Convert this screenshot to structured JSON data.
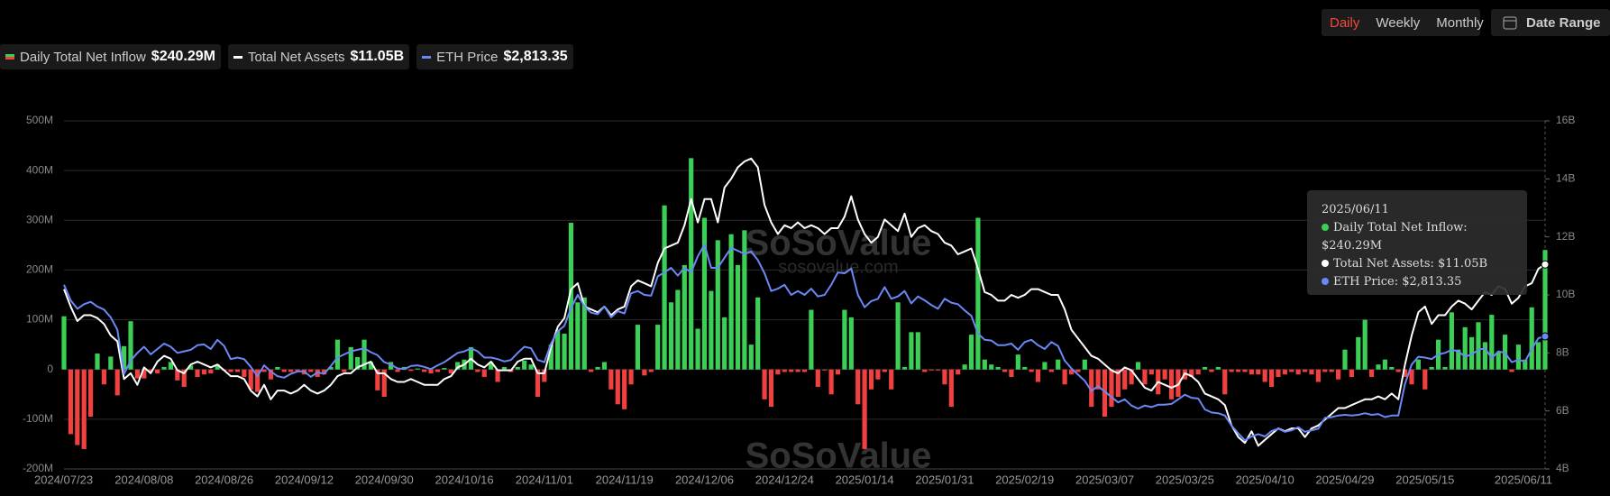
{
  "controls": {
    "periods": [
      "Daily",
      "Weekly",
      "Monthly"
    ],
    "active": "Daily",
    "date_range": "Date Range"
  },
  "watermark": {
    "brand": "SoSoValue",
    "site": "sosovalue.com"
  },
  "chart_data": {
    "type": "bar_line",
    "categories": [
      "2024/07/23",
      null,
      null,
      null,
      null,
      null,
      null,
      null,
      null,
      null,
      null,
      null,
      "2024/08/08",
      null,
      null,
      null,
      null,
      null,
      null,
      null,
      null,
      null,
      null,
      null,
      "2024/08/26",
      null,
      null,
      null,
      null,
      null,
      null,
      null,
      null,
      null,
      null,
      null,
      "2024/09/12",
      null,
      null,
      null,
      null,
      null,
      null,
      null,
      null,
      null,
      null,
      null,
      "2024/09/30",
      null,
      null,
      null,
      null,
      null,
      null,
      null,
      null,
      null,
      null,
      null,
      "2024/10/16",
      null,
      null,
      null,
      null,
      null,
      null,
      null,
      null,
      null,
      null,
      null,
      "2024/11/01",
      null,
      null,
      null,
      null,
      null,
      null,
      null,
      null,
      null,
      null,
      null,
      "2024/11/19",
      null,
      null,
      null,
      null,
      null,
      null,
      null,
      null,
      null,
      null,
      null,
      "2024/12/06",
      null,
      null,
      null,
      null,
      null,
      null,
      null,
      null,
      null,
      null,
      null,
      "2024/12/24",
      null,
      null,
      null,
      null,
      null,
      null,
      null,
      null,
      null,
      null,
      null,
      "2025/01/14",
      null,
      null,
      null,
      null,
      null,
      null,
      null,
      null,
      null,
      null,
      null,
      "2025/01/31",
      null,
      null,
      null,
      null,
      null,
      null,
      null,
      null,
      null,
      null,
      null,
      "2025/02/19",
      null,
      null,
      null,
      null,
      null,
      null,
      null,
      null,
      null,
      null,
      null,
      "2025/03/07",
      null,
      null,
      null,
      null,
      null,
      null,
      null,
      null,
      null,
      null,
      null,
      "2025/03/25",
      null,
      null,
      null,
      null,
      null,
      null,
      null,
      null,
      null,
      null,
      null,
      "2025/04/10",
      null,
      null,
      null,
      null,
      null,
      null,
      null,
      null,
      null,
      null,
      null,
      "2025/04/29",
      null,
      null,
      null,
      null,
      null,
      null,
      null,
      null,
      null,
      null,
      null,
      "2025/05/15",
      null,
      null,
      null,
      null,
      null,
      null,
      null,
      null,
      null,
      null,
      null,
      null,
      null,
      null,
      null,
      null,
      null,
      "2025/06/11"
    ],
    "series": [
      {
        "name": "Daily Total Net Inflow",
        "legend_value": "$240.29M",
        "kind": "bar",
        "color": "#3ccf55",
        "negative_color": "#f04040",
        "values": [
          107,
          -130,
          -152,
          -160,
          -95,
          32,
          -30,
          26,
          -52,
          47,
          97,
          -18,
          -18,
          -5,
          -8,
          5,
          15,
          -22,
          -35,
          8,
          -15,
          -10,
          -8,
          10,
          -2,
          -5,
          -5,
          -15,
          -40,
          -45,
          -5,
          -20,
          5,
          -5,
          -5,
          -3,
          -10,
          -5,
          -15,
          -10,
          5,
          60,
          -5,
          45,
          25,
          60,
          15,
          -42,
          -55,
          15,
          -5,
          5,
          -3,
          2,
          -5,
          -8,
          -5,
          3,
          -8,
          15,
          20,
          45,
          -5,
          -15,
          15,
          -25,
          5,
          -5,
          5,
          18,
          10,
          -55,
          -25,
          50,
          80,
          72,
          295,
          135,
          145,
          -5,
          5,
          15,
          -40,
          -70,
          -80,
          -30,
          90,
          -12,
          -5,
          90,
          330,
          135,
          160,
          210,
          425,
          82,
          305,
          158,
          260,
          105,
          272,
          210,
          280,
          50,
          145,
          -60,
          -75,
          -10,
          -5,
          -5,
          -5,
          -5,
          120,
          -35,
          -2,
          -50,
          -10,
          120,
          105,
          -70,
          -160,
          -40,
          -20,
          -5,
          -40,
          135,
          5,
          75,
          75,
          -5,
          -2,
          -2,
          -30,
          -75,
          -10,
          10,
          70,
          305,
          20,
          10,
          5,
          -5,
          -15,
          30,
          5,
          -5,
          -25,
          15,
          -5,
          20,
          -30,
          -10,
          -5,
          20,
          -75,
          -40,
          -95,
          -75,
          -55,
          -40,
          -30,
          15,
          -30,
          -10,
          -50,
          -20,
          -60,
          -55,
          -20,
          -15,
          -10,
          5,
          -5,
          5,
          -50,
          -5,
          -5,
          -5,
          -10,
          -10,
          -25,
          -35,
          -15,
          -10,
          -5,
          -10,
          -5,
          -10,
          -25,
          -5,
          -5,
          -20,
          40,
          -15,
          65,
          100,
          -15,
          10,
          20,
          5,
          -5,
          -15,
          -30,
          20,
          -40,
          5,
          60,
          5,
          115,
          40,
          85,
          65,
          95,
          55,
          110,
          35,
          70,
          -5,
          50,
          20,
          125,
          55,
          240.29
        ]
      },
      {
        "name": "Total Net Assets",
        "legend_value": "$11.05B",
        "kind": "line",
        "axis": "y2",
        "color": "#ffffff",
        "values": [
          10.2,
          9.6,
          9.1,
          9.3,
          9.3,
          9.2,
          9.0,
          8.6,
          8.4,
          7.1,
          7.3,
          6.9,
          7.5,
          7.3,
          7.7,
          7.9,
          7.8,
          7.4,
          7.3,
          7.6,
          7.7,
          7.6,
          7.5,
          7.6,
          7.4,
          7.2,
          7.2,
          7.1,
          6.7,
          6.5,
          6.9,
          6.4,
          6.7,
          6.7,
          6.6,
          6.7,
          6.9,
          6.7,
          6.6,
          6.7,
          6.9,
          7.2,
          7.3,
          7.3,
          7.5,
          7.6,
          7.7,
          7.3,
          7.3,
          7.1,
          7.0,
          7.0,
          7.1,
          7.0,
          6.9,
          6.9,
          6.9,
          7.1,
          7.2,
          7.5,
          7.6,
          7.8,
          7.6,
          7.5,
          7.7,
          7.4,
          7.4,
          7.4,
          7.7,
          7.8,
          7.8,
          7.3,
          7.3,
          8.2,
          8.9,
          9.2,
          10.2,
          10.4,
          9.6,
          9.5,
          9.4,
          9.6,
          9.3,
          9.5,
          9.6,
          10.3,
          10.5,
          10.4,
          10.3,
          11.1,
          11.6,
          11.7,
          11.8,
          12.4,
          13.3,
          12.5,
          13.3,
          13.3,
          12.5,
          13.7,
          14.0,
          14.4,
          14.6,
          14.7,
          14.4,
          13.1,
          12.5,
          12.1,
          12.4,
          12.3,
          12.5,
          12.3,
          12.4,
          12.3,
          12.1,
          12.3,
          12.3,
          12.7,
          13.4,
          12.6,
          12.1,
          11.8,
          12.0,
          12.6,
          12.4,
          12.2,
          12.8,
          12.0,
          12.3,
          12.4,
          12.2,
          12.1,
          11.8,
          11.7,
          11.4,
          11.5,
          11.6,
          10.9,
          10.1,
          10.0,
          9.8,
          9.8,
          10.0,
          9.9,
          10.0,
          10.2,
          10.2,
          10.1,
          10.0,
          10.0,
          9.5,
          8.8,
          8.5,
          8.2,
          7.9,
          7.8,
          7.6,
          7.4,
          7.3,
          7.5,
          7.4,
          7.1,
          6.8,
          6.7,
          7.0,
          6.9,
          6.8,
          6.9,
          7.3,
          7.2,
          7.0,
          6.6,
          6.5,
          6.4,
          6.2,
          5.5,
          5.1,
          4.9,
          5.3,
          4.8,
          5.0,
          5.2,
          5.4,
          5.3,
          5.4,
          5.4,
          5.1,
          5.4,
          5.5,
          5.7,
          5.9,
          6.1,
          6.1,
          6.2,
          6.3,
          6.4,
          6.4,
          6.5,
          6.4,
          6.6,
          6.4,
          7.6,
          8.6,
          9.4,
          9.6,
          9.0,
          9.3,
          9.3,
          9.6,
          9.8,
          9.7,
          9.5,
          9.8,
          10.1,
          10.0,
          10.3,
          10.2,
          9.7,
          9.9,
          10.3,
          10.4,
          10.9,
          11.05
        ]
      },
      {
        "name": "ETH Price",
        "legend_value": "$2,813.35",
        "kind": "line",
        "axis": "y3",
        "color": "#6b88f5",
        "values": [
          3480,
          3280,
          3170,
          3230,
          3260,
          3200,
          3160,
          3060,
          2900,
          2330,
          2500,
          2600,
          2680,
          2580,
          2650,
          2720,
          2680,
          2600,
          2620,
          2640,
          2700,
          2710,
          2650,
          2770,
          2690,
          2520,
          2540,
          2520,
          2420,
          2300,
          2440,
          2360,
          2300,
          2280,
          2330,
          2360,
          2360,
          2290,
          2350,
          2330,
          2430,
          2540,
          2580,
          2620,
          2640,
          2660,
          2610,
          2570,
          2480,
          2450,
          2400,
          2390,
          2430,
          2440,
          2420,
          2390,
          2440,
          2480,
          2540,
          2600,
          2620,
          2660,
          2620,
          2540,
          2540,
          2520,
          2490,
          2510,
          2600,
          2680,
          2660,
          2510,
          2480,
          2720,
          2880,
          2950,
          3180,
          3350,
          3200,
          3120,
          3100,
          3200,
          3060,
          3140,
          3110,
          3370,
          3400,
          3350,
          3340,
          3590,
          3640,
          3700,
          3600,
          3700,
          3640,
          3850,
          4000,
          3700,
          3700,
          3830,
          3960,
          3920,
          3880,
          3910,
          3800,
          3630,
          3400,
          3430,
          3480,
          3350,
          3400,
          3350,
          3430,
          3330,
          3350,
          3480,
          3640,
          3630,
          3690,
          3350,
          3190,
          3270,
          3300,
          3450,
          3300,
          3330,
          3400,
          3240,
          3330,
          3280,
          3220,
          3170,
          3300,
          3250,
          3230,
          3150,
          3080,
          2850,
          2770,
          2760,
          2700,
          2700,
          2720,
          2640,
          2740,
          2770,
          2700,
          2650,
          2740,
          2690,
          2500,
          2400,
          2320,
          2240,
          2110,
          2170,
          2100,
          2030,
          1960,
          2000,
          1920,
          1880,
          1920,
          1900,
          1930,
          1930,
          1940,
          2000,
          2060,
          2020,
          2010,
          1870,
          1830,
          1820,
          1790,
          1660,
          1560,
          1470,
          1520,
          1550,
          1520,
          1590,
          1620,
          1580,
          1600,
          1640,
          1580,
          1600,
          1620,
          1760,
          1770,
          1790,
          1800,
          1790,
          1800,
          1820,
          1800,
          1810,
          1770,
          1790,
          1790,
          2200,
          2450,
          2550,
          2540,
          2520,
          2580,
          2600,
          2640,
          2620,
          2550,
          2580,
          2640,
          2660,
          2530,
          2620,
          2600,
          2480,
          2510,
          2490,
          2650,
          2790,
          2813.35
        ]
      }
    ],
    "ylim": [
      -200,
      500
    ],
    "yticks": [
      {
        "value": -200,
        "label": "-200M"
      },
      {
        "value": -100,
        "label": "-100M"
      },
      0,
      {
        "value": 100,
        "label": "100M"
      },
      {
        "value": 200,
        "label": "200M"
      },
      {
        "value": 300,
        "label": "300M"
      },
      {
        "value": 400,
        "label": "400M"
      },
      {
        "value": 500,
        "label": "500M"
      }
    ],
    "y2lim": [
      4,
      16
    ],
    "y2ticks": [
      {
        "value": 4,
        "label": "4B"
      },
      {
        "value": 6,
        "label": "6B"
      },
      {
        "value": 8,
        "label": "8B"
      },
      {
        "value": 10,
        "label": "10B"
      },
      {
        "value": 12,
        "label": "12B"
      },
      {
        "value": 14,
        "label": "14B"
      },
      {
        "value": 16,
        "label": "16B"
      }
    ],
    "y3lim": [
      1100,
      5600
    ],
    "grid": true,
    "tooltip": {
      "date": "2025/06/11",
      "lines": [
        "Daily Total Net Inflow: $240.29M",
        "Total Net Assets: $11.05B",
        "ETH Price: $2,813.35"
      ]
    }
  }
}
